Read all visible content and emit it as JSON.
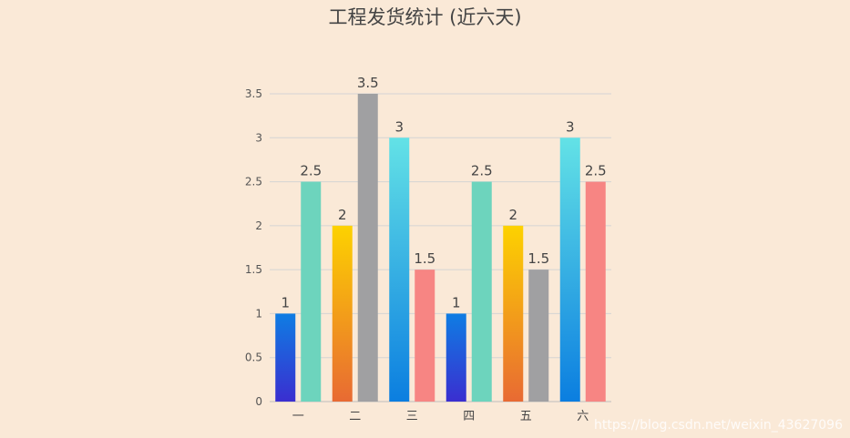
{
  "chart_data": {
    "type": "bar",
    "title": "工程发货统计 (近六天)",
    "categories": [
      "一",
      "二",
      "三",
      "四",
      "五",
      "六"
    ],
    "ylim": [
      0,
      3.5
    ],
    "yticks": [
      "0",
      "0.5",
      "1",
      "1.5",
      "2",
      "2.5",
      "3",
      "3.5"
    ],
    "grid": true,
    "bars": [
      {
        "category": "一",
        "values": [
          1,
          2.5
        ],
        "styles": [
          "blue",
          "teal"
        ]
      },
      {
        "category": "二",
        "values": [
          2,
          3.5
        ],
        "styles": [
          "orange",
          "gray"
        ]
      },
      {
        "category": "三",
        "values": [
          3,
          1.5
        ],
        "styles": [
          "cyan",
          "salmon"
        ]
      },
      {
        "category": "四",
        "values": [
          1,
          2.5
        ],
        "styles": [
          "blue",
          "teal"
        ]
      },
      {
        "category": "五",
        "values": [
          2,
          1.5
        ],
        "styles": [
          "orange",
          "gray"
        ]
      },
      {
        "category": "六",
        "values": [
          3,
          2.5
        ],
        "styles": [
          "cyan",
          "salmon"
        ]
      }
    ],
    "colors": {
      "blue": [
        "#0f7de3",
        "#3a2ed0"
      ],
      "teal": [
        "#6dd4bd",
        "#6dd4bd"
      ],
      "orange": [
        "#fdd200",
        "#e86a33"
      ],
      "gray": [
        "#a0a0a2",
        "#a0a0a2"
      ],
      "cyan": [
        "#63e2e6",
        "#0b7ee0"
      ],
      "salmon": [
        "#f78583",
        "#f78583"
      ]
    }
  },
  "watermark": "https://blog.csdn.net/weixin_43627096"
}
